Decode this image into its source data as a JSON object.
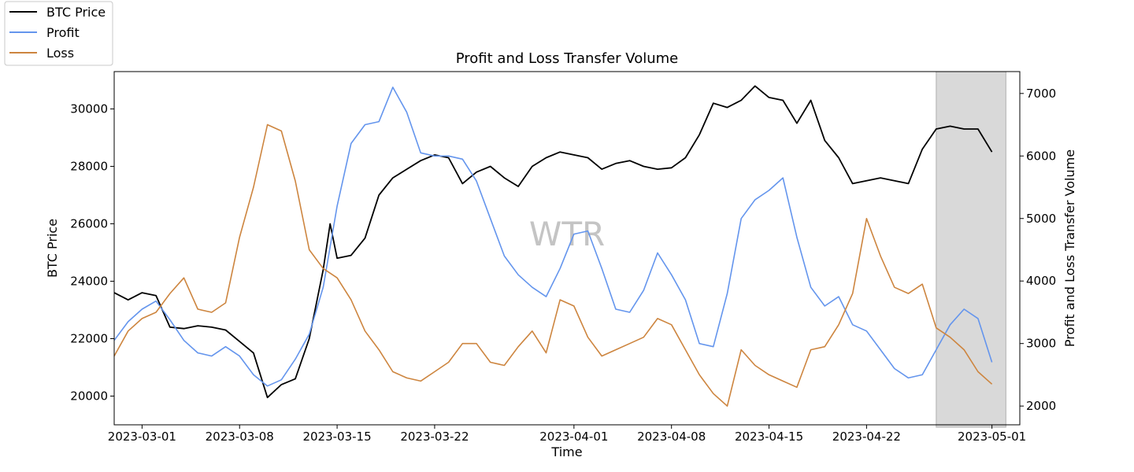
{
  "chart_data": {
    "type": "line",
    "title": "Profit and Loss Transfer Volume",
    "xlabel": "Time",
    "ylabel_left": "BTC Price",
    "ylabel_right": "Profit and Loss Transfer Volume",
    "watermark": "WTR",
    "x_range": [
      "2023-02-27",
      "2023-05-03"
    ],
    "ylim_left": [
      19000,
      31300
    ],
    "ylim_right": [
      1700,
      7350
    ],
    "x_ticks": [
      "2023-03-01",
      "2023-03-08",
      "2023-03-15",
      "2023-03-22",
      "2023-04-01",
      "2023-04-08",
      "2023-04-15",
      "2023-04-22",
      "2023-05-01"
    ],
    "y_ticks_left": [
      20000,
      22000,
      24000,
      26000,
      28000,
      30000
    ],
    "y_ticks_right": [
      2000,
      3000,
      4000,
      5000,
      6000,
      7000
    ],
    "grid": false,
    "legend_position": "top-left, outside plot",
    "shaded_region": {
      "start": "2023-04-27",
      "end": "2023-05-02"
    },
    "series": [
      {
        "name": "BTC Price",
        "axis": "left",
        "color": "#000000",
        "points": [
          [
            "2023-02-27",
            23600
          ],
          [
            "2023-02-28",
            23350
          ],
          [
            "2023-03-01",
            23600
          ],
          [
            "2023-03-02",
            23500
          ],
          [
            "2023-03-03",
            22400
          ],
          [
            "2023-03-04",
            22350
          ],
          [
            "2023-03-05",
            22450
          ],
          [
            "2023-03-06",
            22400
          ],
          [
            "2023-03-07",
            22300
          ],
          [
            "2023-03-08",
            21900
          ],
          [
            "2023-03-09",
            21500
          ],
          [
            "2023-03-10",
            19950
          ],
          [
            "2023-03-11",
            20400
          ],
          [
            "2023-03-12",
            20600
          ],
          [
            "2023-03-13",
            22000
          ],
          [
            "2023-03-14",
            24400
          ],
          [
            "2023-03-14T12:00",
            26000
          ],
          [
            "2023-03-15",
            24800
          ],
          [
            "2023-03-16",
            24900
          ],
          [
            "2023-03-17",
            25500
          ],
          [
            "2023-03-18",
            27000
          ],
          [
            "2023-03-19",
            27600
          ],
          [
            "2023-03-20",
            27900
          ],
          [
            "2023-03-21",
            28200
          ],
          [
            "2023-03-22",
            28400
          ],
          [
            "2023-03-23",
            28300
          ],
          [
            "2023-03-24",
            27400
          ],
          [
            "2023-03-25",
            27800
          ],
          [
            "2023-03-26",
            28000
          ],
          [
            "2023-03-27",
            27600
          ],
          [
            "2023-03-28",
            27300
          ],
          [
            "2023-03-29",
            28000
          ],
          [
            "2023-03-30",
            28300
          ],
          [
            "2023-03-31",
            28500
          ],
          [
            "2023-04-01",
            28400
          ],
          [
            "2023-04-02",
            28300
          ],
          [
            "2023-04-03",
            27900
          ],
          [
            "2023-04-04",
            28100
          ],
          [
            "2023-04-05",
            28200
          ],
          [
            "2023-04-06",
            28000
          ],
          [
            "2023-04-07",
            27900
          ],
          [
            "2023-04-08",
            27950
          ],
          [
            "2023-04-09",
            28300
          ],
          [
            "2023-04-10",
            29100
          ],
          [
            "2023-04-11",
            30200
          ],
          [
            "2023-04-12",
            30050
          ],
          [
            "2023-04-13",
            30300
          ],
          [
            "2023-04-14",
            30800
          ],
          [
            "2023-04-15",
            30400
          ],
          [
            "2023-04-16",
            30300
          ],
          [
            "2023-04-17",
            29500
          ],
          [
            "2023-04-18",
            30300
          ],
          [
            "2023-04-19",
            28900
          ],
          [
            "2023-04-20",
            28300
          ],
          [
            "2023-04-21",
            27400
          ],
          [
            "2023-04-22",
            27500
          ],
          [
            "2023-04-23",
            27600
          ],
          [
            "2023-04-24",
            27500
          ],
          [
            "2023-04-25",
            27400
          ],
          [
            "2023-04-26",
            28600
          ],
          [
            "2023-04-27",
            29300
          ],
          [
            "2023-04-28",
            29400
          ],
          [
            "2023-04-29",
            29300
          ],
          [
            "2023-04-30",
            29300
          ],
          [
            "2023-05-01",
            28500
          ]
        ]
      },
      {
        "name": "Profit",
        "axis": "right",
        "color": "#6495ed",
        "points": [
          [
            "2023-02-27",
            3050
          ],
          [
            "2023-02-28",
            3350
          ],
          [
            "2023-03-01",
            3550
          ],
          [
            "2023-03-02",
            3680
          ],
          [
            "2023-03-03",
            3380
          ],
          [
            "2023-03-04",
            3050
          ],
          [
            "2023-03-05",
            2850
          ],
          [
            "2023-03-06",
            2800
          ],
          [
            "2023-03-07",
            2950
          ],
          [
            "2023-03-08",
            2800
          ],
          [
            "2023-03-09",
            2500
          ],
          [
            "2023-03-10",
            2320
          ],
          [
            "2023-03-11",
            2420
          ],
          [
            "2023-03-12",
            2750
          ],
          [
            "2023-03-13",
            3150
          ],
          [
            "2023-03-14",
            3900
          ],
          [
            "2023-03-15",
            5200
          ],
          [
            "2023-03-16",
            6200
          ],
          [
            "2023-03-17",
            6500
          ],
          [
            "2023-03-18",
            6550
          ],
          [
            "2023-03-19",
            7100
          ],
          [
            "2023-03-20",
            6700
          ],
          [
            "2023-03-21",
            6050
          ],
          [
            "2023-03-22",
            6000
          ],
          [
            "2023-03-23",
            6000
          ],
          [
            "2023-03-24",
            5950
          ],
          [
            "2023-03-25",
            5600
          ],
          [
            "2023-03-26",
            5000
          ],
          [
            "2023-03-27",
            4400
          ],
          [
            "2023-03-28",
            4100
          ],
          [
            "2023-03-29",
            3900
          ],
          [
            "2023-03-30",
            3750
          ],
          [
            "2023-03-31",
            4200
          ],
          [
            "2023-04-01",
            4750
          ],
          [
            "2023-04-02",
            4800
          ],
          [
            "2023-04-03",
            4200
          ],
          [
            "2023-04-04",
            3550
          ],
          [
            "2023-04-05",
            3500
          ],
          [
            "2023-04-06",
            3850
          ],
          [
            "2023-04-07",
            4450
          ],
          [
            "2023-04-08",
            4100
          ],
          [
            "2023-04-09",
            3700
          ],
          [
            "2023-04-10",
            3000
          ],
          [
            "2023-04-11",
            2950
          ],
          [
            "2023-04-12",
            3800
          ],
          [
            "2023-04-13",
            5000
          ],
          [
            "2023-04-14",
            5300
          ],
          [
            "2023-04-15",
            5450
          ],
          [
            "2023-04-16",
            5650
          ],
          [
            "2023-04-17",
            4700
          ],
          [
            "2023-04-18",
            3900
          ],
          [
            "2023-04-19",
            3600
          ],
          [
            "2023-04-20",
            3750
          ],
          [
            "2023-04-21",
            3300
          ],
          [
            "2023-04-22",
            3200
          ],
          [
            "2023-04-23",
            2900
          ],
          [
            "2023-04-24",
            2600
          ],
          [
            "2023-04-25",
            2450
          ],
          [
            "2023-04-26",
            2500
          ],
          [
            "2023-04-27",
            2900
          ],
          [
            "2023-04-28",
            3300
          ],
          [
            "2023-04-29",
            3550
          ],
          [
            "2023-04-30",
            3400
          ],
          [
            "2023-05-01",
            2700
          ]
        ]
      },
      {
        "name": "Loss",
        "axis": "right",
        "color": "#cd853f",
        "points": [
          [
            "2023-02-27",
            2800
          ],
          [
            "2023-02-28",
            3200
          ],
          [
            "2023-03-01",
            3400
          ],
          [
            "2023-03-02",
            3500
          ],
          [
            "2023-03-03",
            3800
          ],
          [
            "2023-03-04",
            4050
          ],
          [
            "2023-03-05",
            3550
          ],
          [
            "2023-03-06",
            3500
          ],
          [
            "2023-03-07",
            3650
          ],
          [
            "2023-03-08",
            4700
          ],
          [
            "2023-03-09",
            5500
          ],
          [
            "2023-03-10",
            6500
          ],
          [
            "2023-03-11",
            6400
          ],
          [
            "2023-03-12",
            5600
          ],
          [
            "2023-03-13",
            4500
          ],
          [
            "2023-03-14",
            4200
          ],
          [
            "2023-03-15",
            4050
          ],
          [
            "2023-03-16",
            3700
          ],
          [
            "2023-03-17",
            3200
          ],
          [
            "2023-03-18",
            2900
          ],
          [
            "2023-03-19",
            2550
          ],
          [
            "2023-03-20",
            2450
          ],
          [
            "2023-03-21",
            2400
          ],
          [
            "2023-03-22",
            2550
          ],
          [
            "2023-03-23",
            2700
          ],
          [
            "2023-03-24",
            3000
          ],
          [
            "2023-03-25",
            3000
          ],
          [
            "2023-03-26",
            2700
          ],
          [
            "2023-03-27",
            2650
          ],
          [
            "2023-03-28",
            2950
          ],
          [
            "2023-03-29",
            3200
          ],
          [
            "2023-03-30",
            2850
          ],
          [
            "2023-03-31",
            3700
          ],
          [
            "2023-04-01",
            3600
          ],
          [
            "2023-04-02",
            3100
          ],
          [
            "2023-04-03",
            2800
          ],
          [
            "2023-04-04",
            2900
          ],
          [
            "2023-04-05",
            3000
          ],
          [
            "2023-04-06",
            3100
          ],
          [
            "2023-04-07",
            3400
          ],
          [
            "2023-04-08",
            3300
          ],
          [
            "2023-04-09",
            2900
          ],
          [
            "2023-04-10",
            2500
          ],
          [
            "2023-04-11",
            2200
          ],
          [
            "2023-04-12",
            2000
          ],
          [
            "2023-04-13",
            2900
          ],
          [
            "2023-04-14",
            2650
          ],
          [
            "2023-04-15",
            2500
          ],
          [
            "2023-04-16",
            2400
          ],
          [
            "2023-04-17",
            2300
          ],
          [
            "2023-04-18",
            2900
          ],
          [
            "2023-04-19",
            2950
          ],
          [
            "2023-04-20",
            3300
          ],
          [
            "2023-04-21",
            3800
          ],
          [
            "2023-04-22",
            5000
          ],
          [
            "2023-04-23",
            4400
          ],
          [
            "2023-04-24",
            3900
          ],
          [
            "2023-04-25",
            3800
          ],
          [
            "2023-04-26",
            3950
          ],
          [
            "2023-04-27",
            3250
          ],
          [
            "2023-04-28",
            3100
          ],
          [
            "2023-04-29",
            2900
          ],
          [
            "2023-04-30",
            2550
          ],
          [
            "2023-05-01",
            2350
          ]
        ]
      }
    ]
  }
}
